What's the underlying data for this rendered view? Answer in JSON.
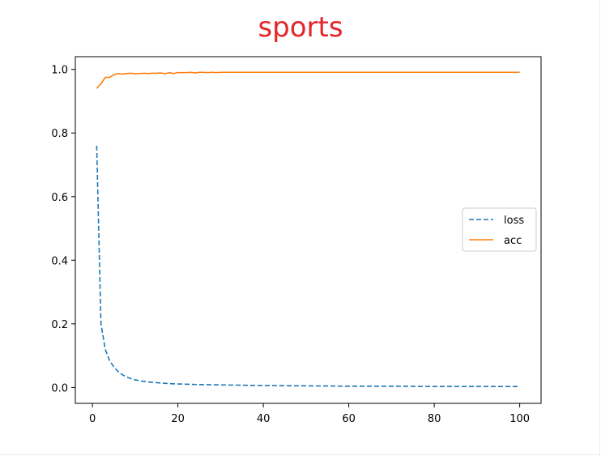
{
  "chart_data": {
    "type": "line",
    "title": "sports",
    "xlabel": "",
    "ylabel": "",
    "xlim": [
      -4,
      105
    ],
    "ylim": [
      -0.05,
      1.04
    ],
    "xticks": [
      0,
      20,
      40,
      60,
      80,
      100
    ],
    "yticks": [
      0.0,
      0.2,
      0.4,
      0.6,
      0.8,
      1.0
    ],
    "xtick_labels": [
      "0",
      "20",
      "40",
      "60",
      "80",
      "100"
    ],
    "ytick_labels": [
      "0.0",
      "0.2",
      "0.4",
      "0.6",
      "0.8",
      "1.0"
    ],
    "grid": false,
    "legend_position": "center-right",
    "series": [
      {
        "name": "loss",
        "color": "#1f77b4",
        "style": "dashed",
        "x": [
          1,
          2,
          3,
          4,
          5,
          6,
          7,
          8,
          9,
          10,
          12,
          14,
          16,
          18,
          20,
          25,
          30,
          35,
          40,
          50,
          60,
          70,
          80,
          90,
          100
        ],
        "y": [
          0.76,
          0.2,
          0.12,
          0.085,
          0.065,
          0.05,
          0.04,
          0.033,
          0.028,
          0.024,
          0.019,
          0.016,
          0.014,
          0.012,
          0.011,
          0.009,
          0.008,
          0.007,
          0.006,
          0.005,
          0.004,
          0.004,
          0.003,
          0.003,
          0.003
        ]
      },
      {
        "name": "acc",
        "color": "#ff7f0e",
        "style": "solid",
        "x": [
          1,
          2,
          3,
          4,
          5,
          6,
          7,
          8,
          9,
          10,
          11,
          12,
          13,
          14,
          15,
          16,
          17,
          18,
          19,
          20,
          21,
          22,
          23,
          24,
          25,
          26,
          27,
          28,
          29,
          30,
          35,
          40,
          50,
          60,
          70,
          80,
          90,
          100
        ],
        "y": [
          0.94,
          0.955,
          0.975,
          0.975,
          0.983,
          0.987,
          0.985,
          0.987,
          0.988,
          0.986,
          0.987,
          0.988,
          0.987,
          0.988,
          0.988,
          0.989,
          0.986,
          0.99,
          0.987,
          0.99,
          0.99,
          0.99,
          0.991,
          0.989,
          0.991,
          0.991,
          0.99,
          0.991,
          0.99,
          0.991,
          0.991,
          0.991,
          0.991,
          0.991,
          0.991,
          0.991,
          0.991,
          0.991
        ]
      }
    ]
  }
}
